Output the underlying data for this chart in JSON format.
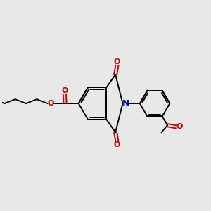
{
  "bg_color": "#e8e8e8",
  "bond_color": "#000000",
  "N_color": "#0000cc",
  "O_color": "#cc0000",
  "line_width": 1.4,
  "figsize": [
    3.0,
    3.0
  ],
  "dpi": 100,
  "xlim": [
    0,
    10
  ],
  "ylim": [
    0,
    10
  ]
}
